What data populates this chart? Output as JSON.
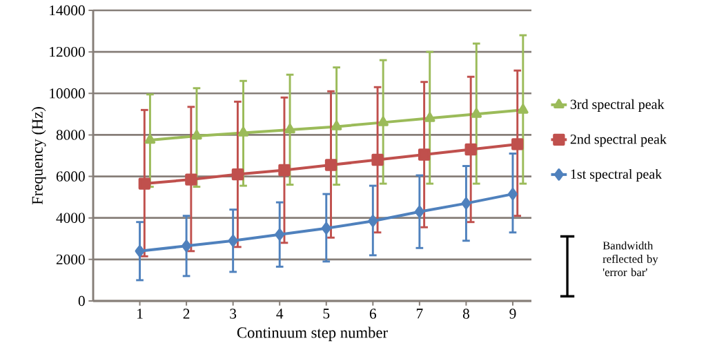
{
  "chart_data": {
    "type": "line",
    "xlabel": "Continuum step number",
    "ylabel": "Frequency (Hz)",
    "xlim": [
      0,
      9.4
    ],
    "xticks": [
      1,
      2,
      3,
      4,
      5,
      6,
      7,
      8,
      9
    ],
    "ylim": [
      0,
      14000
    ],
    "yticks": [
      0,
      2000,
      4000,
      6000,
      8000,
      10000,
      12000,
      14000
    ],
    "grid": "y",
    "legend": "right",
    "line_style": "solid",
    "series": [
      {
        "name": "3rd spectral peak",
        "color": "#9bbb59",
        "marker": "triangle",
        "x": [
          1.22,
          2.22,
          3.22,
          4.22,
          5.22,
          6.22,
          7.22,
          8.22,
          9.22
        ],
        "values": [
          7750,
          7950,
          8100,
          8250,
          8400,
          8600,
          8800,
          9000,
          9200
        ],
        "errors": [
          [
            5500,
            9950
          ],
          [
            5500,
            10250
          ],
          [
            5550,
            10600
          ],
          [
            5600,
            10900
          ],
          [
            5600,
            11250
          ],
          [
            5650,
            11600
          ],
          [
            5650,
            12000
          ],
          [
            5650,
            12400
          ],
          [
            5650,
            12800
          ]
        ]
      },
      {
        "name": "2nd spectral peak",
        "color": "#c0504d",
        "marker": "square",
        "x": [
          1.1,
          2.1,
          3.1,
          4.1,
          5.1,
          6.1,
          7.1,
          8.1,
          9.1
        ],
        "values": [
          5650,
          5850,
          6100,
          6300,
          6550,
          6800,
          7050,
          7300,
          7550
        ],
        "errors": [
          [
            2150,
            9200
          ],
          [
            2400,
            9350
          ],
          [
            2600,
            9600
          ],
          [
            2800,
            9800
          ],
          [
            3050,
            10100
          ],
          [
            3300,
            10300
          ],
          [
            3550,
            10550
          ],
          [
            3800,
            10800
          ],
          [
            4100,
            11100
          ]
        ]
      },
      {
        "name": "1st spectral peak",
        "color": "#4f81bd",
        "marker": "diamond",
        "x": [
          1,
          2,
          3,
          4,
          5,
          6,
          7,
          8,
          9
        ],
        "values": [
          2400,
          2650,
          2900,
          3200,
          3500,
          3850,
          4300,
          4700,
          5150
        ],
        "errors": [
          [
            1000,
            3800
          ],
          [
            1200,
            4100
          ],
          [
            1400,
            4400
          ],
          [
            1650,
            4750
          ],
          [
            1900,
            5150
          ],
          [
            2200,
            5550
          ],
          [
            2550,
            6050
          ],
          [
            2900,
            6500
          ],
          [
            3300,
            7100
          ]
        ]
      }
    ],
    "annotations": [
      "Bandwidth reflected by 'error bar'"
    ]
  }
}
